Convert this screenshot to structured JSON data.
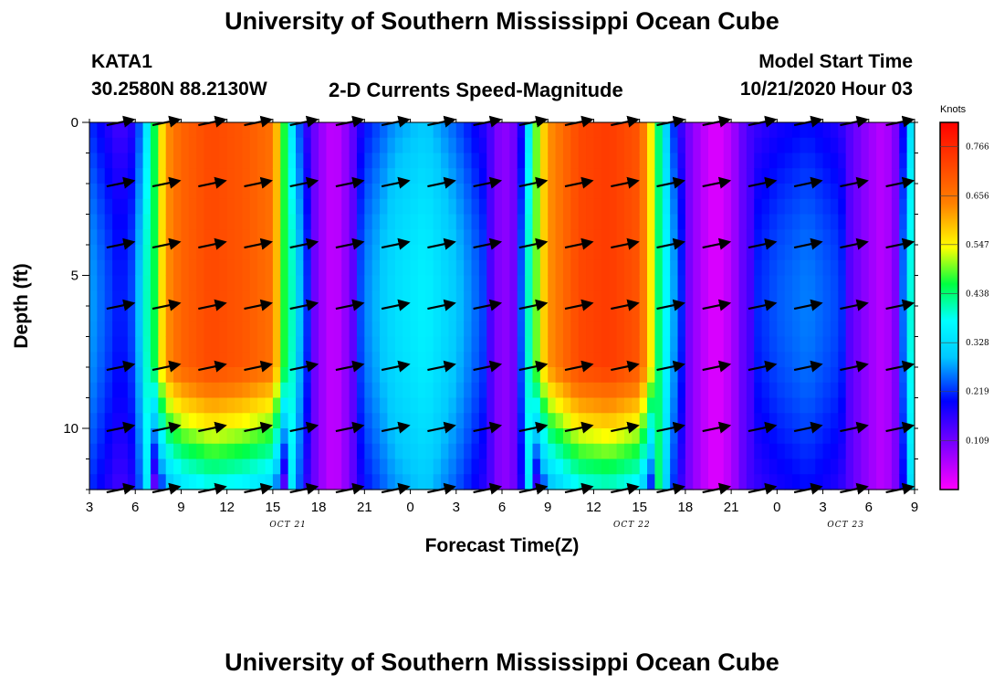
{
  "title": "University of Southern Mississippi Ocean Cube",
  "footer_title": "University of Southern Mississippi Ocean Cube",
  "station": "KATA1",
  "coords": "30.2580N 88.2130W",
  "chart_title": "2-D Currents Speed-Magnitude",
  "model_start_label": "Model Start Time",
  "model_start_value": "10/21/2020 Hour 03",
  "chart_data": {
    "type": "heatmap",
    "title": "2-D Currents Speed-Magnitude",
    "xlabel": "Forecast Time(Z)",
    "ylabel": "Depth (ft)",
    "x_range_hours_since_start": [
      0,
      54
    ],
    "y_range_ft": [
      0,
      12
    ],
    "y_reversed": true,
    "x_tick_labels": [
      "3",
      "6",
      "9",
      "12",
      "15",
      "18",
      "21",
      "0",
      "3",
      "6",
      "9",
      "12",
      "15",
      "18",
      "21",
      "0",
      "3",
      "6",
      "9"
    ],
    "y_tick_labels": [
      "0",
      "5",
      "10"
    ],
    "y_ticks": [
      0,
      5,
      10
    ],
    "date_labels": [
      {
        "hour": 13,
        "text": "OCT 21"
      },
      {
        "hour": 35.5,
        "text": "OCT 22"
      },
      {
        "hour": 49.5,
        "text": "OCT 23"
      }
    ],
    "colorbar": {
      "unit": "Knots",
      "min": 0.0,
      "max": 0.82,
      "ticks": [
        0.766,
        0.656,
        0.547,
        0.438,
        0.328,
        0.219,
        0.109
      ],
      "tick_labels": [
        "0.766",
        "0.656",
        "0.547",
        "0.438",
        "0.328",
        "0.219",
        "0.109"
      ]
    },
    "speed_profile_knots": [
      [
        0,
        0.22
      ],
      [
        1,
        0.18
      ],
      [
        2,
        0.14
      ],
      [
        3,
        0.18
      ],
      [
        4,
        0.4
      ],
      [
        5,
        0.62
      ],
      [
        6,
        0.68
      ],
      [
        8,
        0.72
      ],
      [
        10,
        0.7
      ],
      [
        12,
        0.66
      ],
      [
        13,
        0.4
      ],
      [
        14,
        0.18
      ],
      [
        15,
        0.09
      ],
      [
        16,
        0.04
      ],
      [
        17,
        0.1
      ],
      [
        18,
        0.2
      ],
      [
        20,
        0.27
      ],
      [
        22,
        0.3
      ],
      [
        24,
        0.24
      ],
      [
        26,
        0.16
      ],
      [
        27,
        0.08
      ],
      [
        28,
        0.12
      ],
      [
        28.5,
        0.24
      ],
      [
        29,
        0.45
      ],
      [
        30,
        0.62
      ],
      [
        32,
        0.72
      ],
      [
        34,
        0.74
      ],
      [
        36,
        0.7
      ],
      [
        37,
        0.5
      ],
      [
        38,
        0.25
      ],
      [
        39,
        0.12
      ],
      [
        40,
        0.06
      ],
      [
        41,
        0.02
      ],
      [
        42,
        0.06
      ],
      [
        43,
        0.14
      ],
      [
        45,
        0.18
      ],
      [
        47,
        0.2
      ],
      [
        49,
        0.17
      ],
      [
        50,
        0.12
      ],
      [
        51,
        0.08
      ],
      [
        52,
        0.05
      ],
      [
        53,
        0.12
      ],
      [
        54,
        0.4
      ]
    ],
    "vector_depths_ft": [
      0,
      2,
      4,
      6,
      8,
      10,
      12
    ],
    "vector_hours": [
      2,
      5,
      8,
      11,
      14,
      17,
      20,
      23,
      26,
      29,
      32,
      35,
      38,
      41,
      44,
      47,
      50,
      53
    ],
    "vector_direction_by_hour_deg": [
      [
        2,
        12
      ],
      [
        5,
        12
      ],
      [
        8,
        12
      ],
      [
        11,
        12
      ],
      [
        14,
        12
      ],
      [
        17,
        12
      ],
      [
        20,
        12
      ],
      [
        23,
        12
      ],
      [
        26,
        12
      ],
      [
        29,
        12
      ],
      [
        32,
        12
      ],
      [
        35,
        12
      ],
      [
        38,
        12
      ],
      [
        41,
        12
      ],
      [
        44,
        12
      ],
      [
        47,
        12
      ],
      [
        50,
        12
      ],
      [
        53,
        12
      ]
    ]
  }
}
